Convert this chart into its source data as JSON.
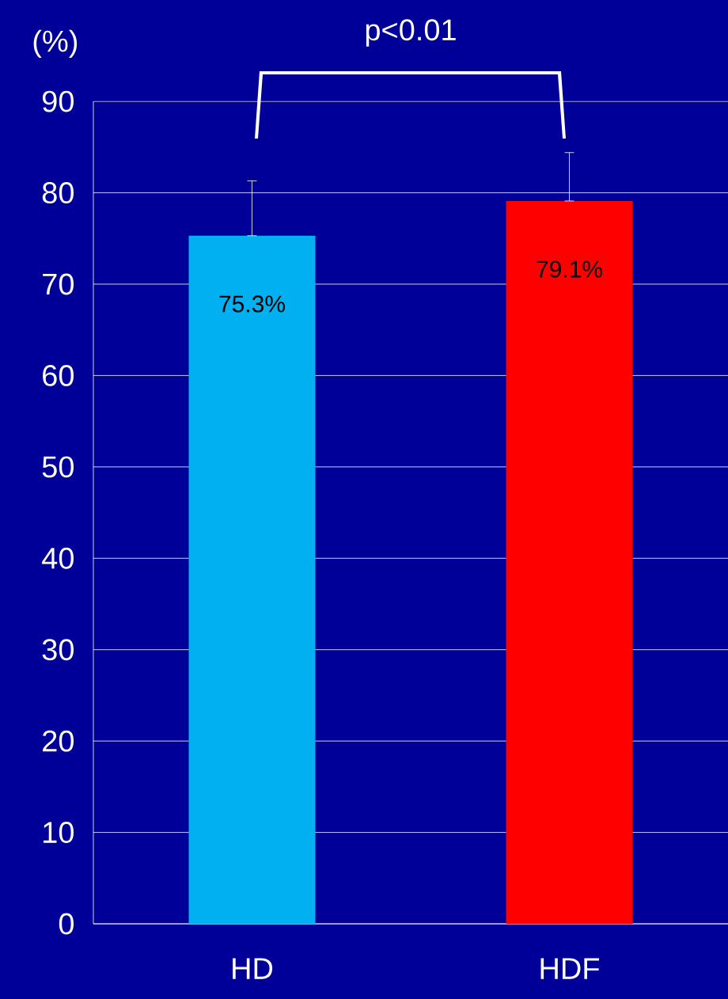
{
  "chart_data": {
    "type": "bar",
    "ylabel": "(%)",
    "categories": [
      "HD",
      "HDF"
    ],
    "values": [
      75.3,
      79.1
    ],
    "colors": [
      "#00b0f0",
      "#ff0000"
    ],
    "errors": [
      [
        75.3,
        81.3
      ],
      [
        79.1,
        84.4
      ]
    ],
    "value_labels": [
      "75.3%",
      "79.1%"
    ],
    "annotations": [
      "p<0.01"
    ],
    "ylim": [
      0,
      90
    ],
    "yticks": [
      0,
      10,
      20,
      30,
      40,
      50,
      60,
      70,
      80,
      90
    ],
    "grid": "y"
  }
}
